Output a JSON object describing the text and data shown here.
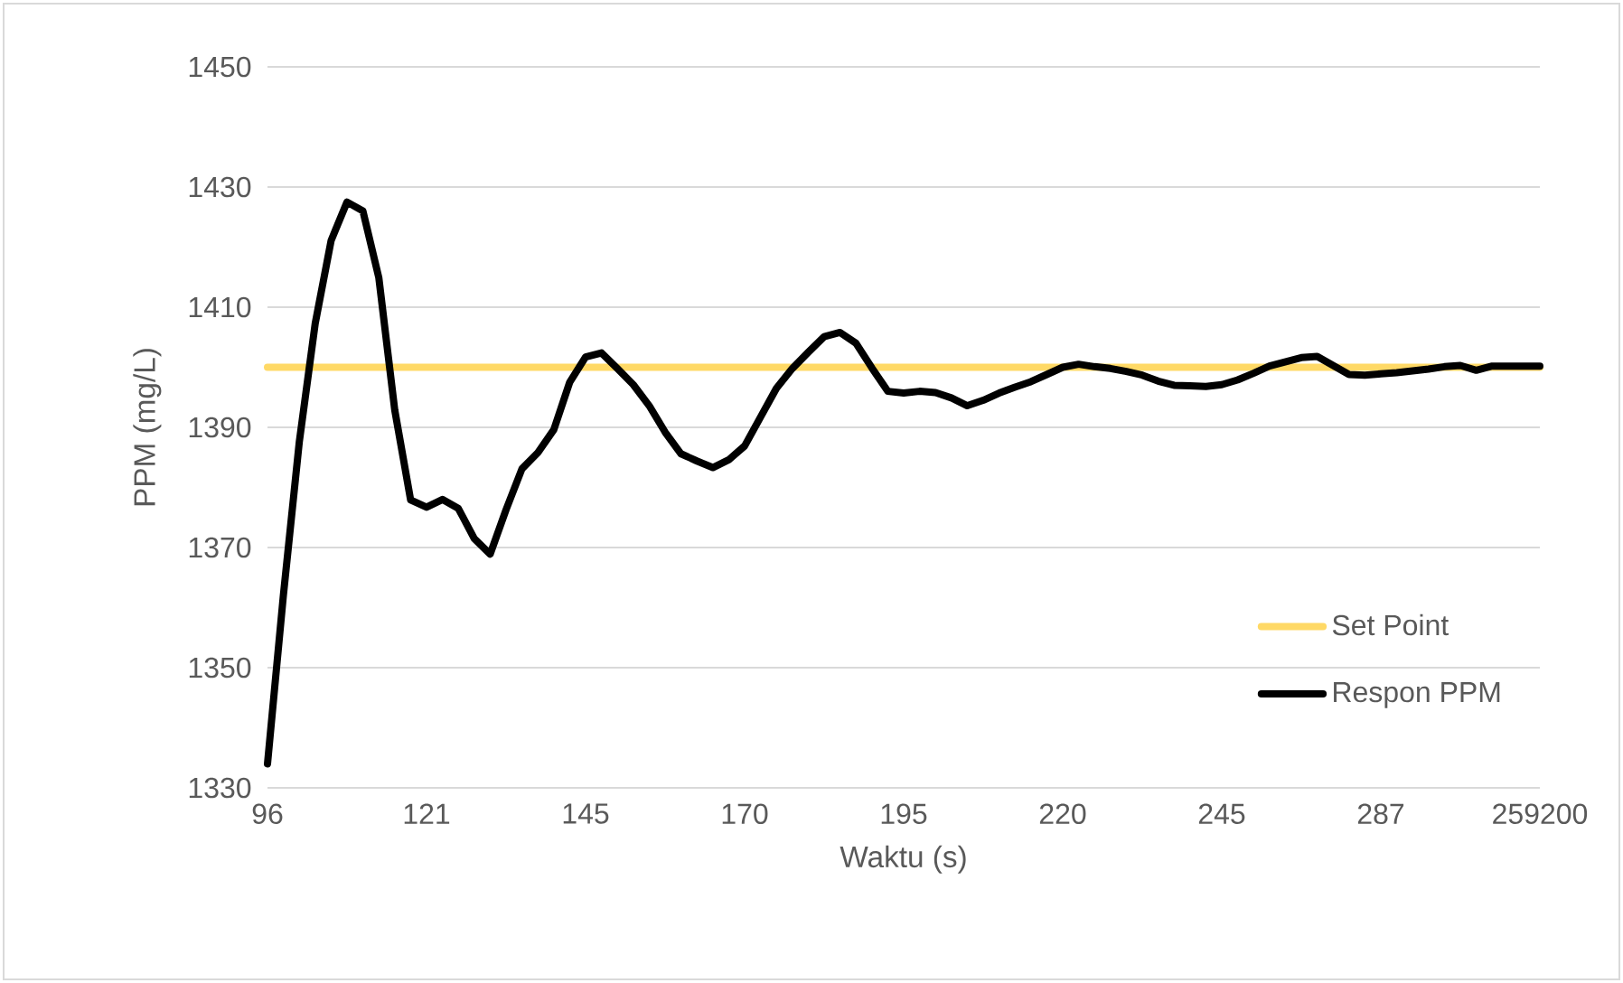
{
  "chart_data": {
    "type": "line",
    "xlabel": "Waktu (s)",
    "ylabel": "PPM (mg/L)",
    "categories": [
      "96",
      null,
      null,
      null,
      null,
      null,
      null,
      null,
      null,
      null,
      "121",
      null,
      null,
      null,
      null,
      null,
      null,
      null,
      null,
      null,
      "145",
      null,
      null,
      null,
      null,
      null,
      null,
      null,
      null,
      null,
      "170",
      null,
      null,
      null,
      null,
      null,
      null,
      null,
      null,
      null,
      "195",
      null,
      null,
      null,
      null,
      null,
      null,
      null,
      null,
      null,
      "220",
      null,
      null,
      null,
      null,
      null,
      null,
      null,
      null,
      null,
      "245",
      null,
      null,
      null,
      null,
      null,
      null,
      null,
      null,
      null,
      "287",
      null,
      null,
      null,
      null,
      null,
      null,
      null,
      null,
      null,
      "259200"
    ],
    "series": [
      {
        "name": "Set Point",
        "color": "#ffd966",
        "values": [
          1400,
          1400,
          1400,
          1400,
          1400,
          1400,
          1400,
          1400,
          1400,
          1400,
          1400,
          1400,
          1400,
          1400,
          1400,
          1400,
          1400,
          1400,
          1400,
          1400,
          1400,
          1400,
          1400,
          1400,
          1400,
          1400,
          1400,
          1400,
          1400,
          1400,
          1400,
          1400,
          1400,
          1400,
          1400,
          1400,
          1400,
          1400,
          1400,
          1400,
          1400,
          1400,
          1400,
          1400,
          1400,
          1400,
          1400,
          1400,
          1400,
          1400,
          1400,
          1400,
          1400,
          1400,
          1400,
          1400,
          1400,
          1400,
          1400,
          1400,
          1400,
          1400,
          1400,
          1400,
          1400,
          1400,
          1400,
          1400,
          1400,
          1400,
          1400,
          1400,
          1400,
          1400,
          1400,
          1400,
          1400,
          1400,
          1400,
          1400,
          1400
        ]
      },
      {
        "name": "Respon PPM",
        "color": "#000000",
        "values": [
          1334,
          1362.1,
          1387.6,
          1407.3,
          1421.1,
          1427.5,
          1426.0,
          1414.9,
          1392.9,
          1377.9,
          1376.7,
          1378.0,
          1376.5,
          1371.5,
          1368.9,
          1376.3,
          1383.1,
          1385.8,
          1389.6,
          1397.5,
          1401.7,
          1402.4,
          1399.8,
          1397.1,
          1393.6,
          1389.2,
          1385.6,
          1384.4,
          1383.3,
          1384.6,
          1386.9,
          1391.7,
          1396.5,
          1399.8,
          1402.5,
          1405.1,
          1405.8,
          1404.0,
          1399.9,
          1396.0,
          1395.7,
          1396.0,
          1395.8,
          1394.9,
          1393.6,
          1394.5,
          1395.7,
          1396.7,
          1397.6,
          1398.8,
          1400.0,
          1400.5,
          1400.1,
          1399.8,
          1399.3,
          1398.7,
          1397.7,
          1397.0,
          1396.9,
          1396.8,
          1397.1,
          1397.9,
          1399.0,
          1400.2,
          1400.9,
          1401.6,
          1401.8,
          1400.3,
          1398.8,
          1398.7,
          1398.9,
          1399.1,
          1399.4,
          1399.7,
          1400.1,
          1400.3,
          1399.5,
          1400.2,
          1400.2,
          1400.2,
          1400.2
        ]
      }
    ],
    "ylim": [
      1330,
      1450
    ],
    "yticks": [
      1330,
      1350,
      1370,
      1390,
      1410,
      1430,
      1450
    ],
    "grid": "y",
    "legend": "bottom right",
    "marker": "none",
    "line_style": "solid"
  }
}
